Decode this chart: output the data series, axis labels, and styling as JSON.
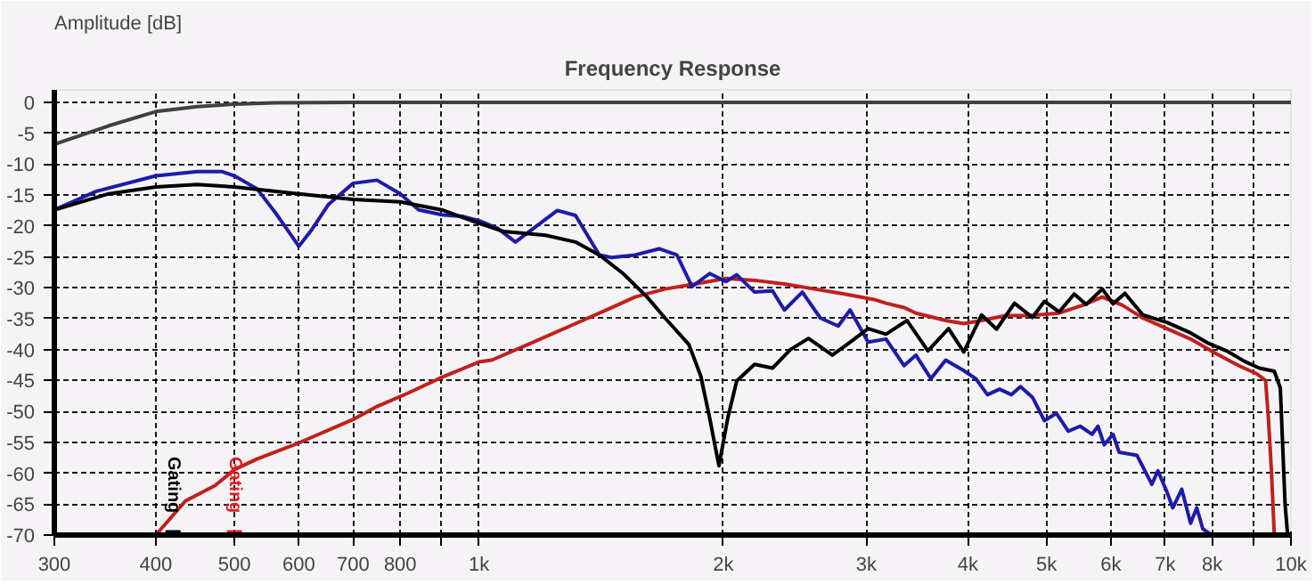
{
  "chart_data": {
    "type": "line",
    "title": "Frequency Response",
    "ylabel": "Amplitude [dB]",
    "log": "x",
    "grid": true,
    "marker": "none",
    "line_style": "solid",
    "xlim": [
      300,
      10000
    ],
    "ylim": [
      -70,
      2
    ],
    "xticks": [
      300,
      400,
      500,
      600,
      700,
      800,
      {
        "value": 900,
        "label": null
      },
      {
        "value": 1000,
        "label": "1k"
      },
      {
        "value": 2000,
        "label": "2k"
      },
      {
        "value": 3000,
        "label": "3k"
      },
      {
        "value": 4000,
        "label": "4k"
      },
      {
        "value": 5000,
        "label": "5k"
      },
      {
        "value": 6000,
        "label": "6k"
      },
      {
        "value": 7000,
        "label": "7k"
      },
      {
        "value": 8000,
        "label": "8k"
      },
      {
        "value": 9000,
        "label": null
      },
      {
        "value": 10000,
        "label": "10k"
      }
    ],
    "yticks": [
      0,
      -5,
      -10,
      -15,
      -20,
      -25,
      -30,
      -35,
      -40,
      -45,
      -50,
      -55,
      -60,
      -65,
      -70
    ],
    "series": [
      {
        "color": "#404040",
        "x": [
          300,
          350,
          400,
          450,
          500,
          561,
          700,
          10000
        ],
        "values": [
          -6.8,
          -3.8,
          -1.5,
          -0.7,
          -0.3,
          -0.1,
          0,
          0
        ]
      },
      {
        "color": "#c0201c",
        "x": [
          400,
          435,
          473,
          500,
          533,
          600,
          700,
          749,
          816,
          900,
          1000,
          1037,
          1148,
          1315,
          1430,
          1557,
          1695,
          1845,
          2015,
          2185,
          2378,
          2589,
          2818,
          3066,
          3172,
          3338,
          3452,
          3757,
          3954,
          4159,
          4452,
          4764,
          5184,
          5549,
          5857,
          6195,
          6571,
          7034,
          7523,
          8053,
          8623,
          9072,
          9306,
          9381,
          9462,
          9539
        ],
        "values": [
          -70,
          -64.5,
          -62,
          -59.4,
          -57.7,
          -55.1,
          -51.3,
          -49.2,
          -47.1,
          -44.5,
          -42.0,
          -41.7,
          -39.2,
          -35.8,
          -33.7,
          -31.5,
          -30.2,
          -29.4,
          -28.5,
          -28.8,
          -29.4,
          -30.2,
          -31.0,
          -31.9,
          -32.5,
          -33.2,
          -34.1,
          -35.3,
          -35.8,
          -35.3,
          -34.5,
          -34.5,
          -34.1,
          -32.8,
          -31.5,
          -32.8,
          -34.9,
          -36.6,
          -38.3,
          -40.5,
          -42.6,
          -43.9,
          -45.0,
          -51.1,
          -59.6,
          -70
        ]
      },
      {
        "color": "#1c1ca8",
        "x": [
          300,
          338,
          400,
          450,
          482,
          500,
          533,
          561,
          585,
          600,
          621,
          653,
          700,
          749,
          800,
          843,
          900,
          958,
          1002,
          1055,
          1109,
          1167,
          1249,
          1315,
          1407,
          1456,
          1557,
          1667,
          1753,
          1830,
          1924,
          2015,
          2077,
          2185,
          2299,
          2378,
          2502,
          2633,
          2770,
          2865,
          3015,
          3172,
          3338,
          3452,
          3603,
          3757,
          3954,
          4091,
          4230,
          4377,
          4527,
          4644,
          4804,
          4971,
          5141,
          5319,
          5501,
          5690,
          5787,
          5888,
          6038,
          6142,
          6461,
          6742,
          6857,
          7034,
          7154,
          7337,
          7523,
          7656,
          7788,
          7988
        ],
        "values": [
          -17.4,
          -14.4,
          -11.9,
          -11.2,
          -11.2,
          -11.9,
          -14.0,
          -17.8,
          -21.2,
          -23.3,
          -20.8,
          -16.5,
          -13.1,
          -12.6,
          -14.8,
          -17.4,
          -18.2,
          -18.5,
          -19.2,
          -20.4,
          -22.6,
          -20.4,
          -17.5,
          -18.3,
          -24.7,
          -25.1,
          -24.7,
          -23.7,
          -24.7,
          -29.8,
          -27.7,
          -29.0,
          -27.9,
          -30.7,
          -30.5,
          -33.6,
          -30.7,
          -34.9,
          -36.2,
          -33.6,
          -38.8,
          -38.3,
          -42.6,
          -40.9,
          -44.7,
          -41.7,
          -43.4,
          -44.7,
          -47.3,
          -46.4,
          -47.3,
          -46.0,
          -47.7,
          -51.5,
          -50.3,
          -53.2,
          -52.4,
          -53.7,
          -52.4,
          -55.4,
          -53.7,
          -56.6,
          -57.1,
          -61.8,
          -59.6,
          -63.0,
          -65.6,
          -62.6,
          -68.1,
          -65.6,
          -69.0,
          -70
        ]
      },
      {
        "color": "#000000",
        "x": [
          300,
          350,
          400,
          450,
          500,
          600,
          700,
          800,
          900,
          1002,
          1073,
          1208,
          1315,
          1407,
          1505,
          1611,
          1695,
          1814,
          1876,
          1924,
          1975,
          2025,
          2077,
          2185,
          2299,
          2419,
          2546,
          2724,
          2865,
          3015,
          3172,
          3367,
          3572,
          3788,
          3954,
          4159,
          4340,
          4566,
          4804,
          4971,
          5184,
          5409,
          5595,
          5857,
          6038,
          6245,
          6571,
          7034,
          7523,
          7916,
          8330,
          8765,
          9143,
          9539,
          9703,
          9835,
          9901
        ],
        "values": [
          -17.4,
          -14.8,
          -13.7,
          -13.3,
          -13.7,
          -14.8,
          -15.7,
          -16.1,
          -17.4,
          -19.6,
          -20.9,
          -21.5,
          -22.6,
          -24.7,
          -27.7,
          -31.5,
          -34.9,
          -39.2,
          -44.3,
          -51.1,
          -58.8,
          -51.1,
          -45.1,
          -42.4,
          -43.0,
          -40.0,
          -38.2,
          -40.9,
          -38.8,
          -36.6,
          -37.5,
          -35.3,
          -40.2,
          -36.6,
          -40.4,
          -34.4,
          -36.7,
          -32.5,
          -34.8,
          -32.2,
          -33.9,
          -31.0,
          -32.7,
          -30.2,
          -32.6,
          -30.9,
          -34.4,
          -35.6,
          -37.3,
          -39.0,
          -40.2,
          -41.9,
          -43.0,
          -43.5,
          -46.2,
          -65,
          -69.6
        ]
      }
    ],
    "annotations": [
      {
        "text": "Gating",
        "x": 420,
        "y": -70
      },
      {
        "text": "Gating",
        "x": 500,
        "y": -70
      }
    ]
  }
}
